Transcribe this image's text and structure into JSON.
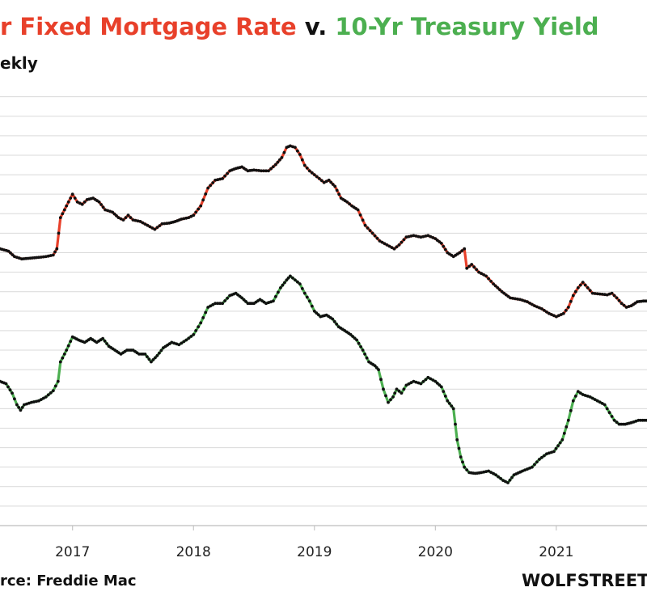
{
  "header": {
    "title_part1": "r Fixed Mortgage Rate",
    "title_part2": " v. ",
    "title_part3": "10-Yr Treasury Yield",
    "subtitle": "ekly"
  },
  "footer": {
    "source": "rce: Freddie Mac",
    "brand": "WOLFSTREET"
  },
  "colors": {
    "mortgage": "#e8402a",
    "treasury": "#4caf50",
    "markers": "#111111",
    "grid": "#d9d9d9"
  },
  "chart_data": {
    "type": "line",
    "title": "Fixed Mortgage Rate v. 10-Yr Treasury Yield",
    "subtitle": "Weekly",
    "xlabel": "",
    "ylabel": "",
    "x_tick_labels": [
      "2017",
      "2018",
      "2019",
      "2020",
      "2021"
    ],
    "x_tick_positions": [
      2017,
      2018,
      2019,
      2020,
      2021
    ],
    "xlim": [
      2016.4,
      2021.75
    ],
    "ylim": [
      0.0,
      5.6
    ],
    "grid": true,
    "series": [
      {
        "name": "Fixed Mortgage Rate",
        "color": "#e8402a",
        "points": [
          [
            2016.4,
            3.55
          ],
          [
            2016.47,
            3.52
          ],
          [
            2016.52,
            3.45
          ],
          [
            2016.58,
            3.42
          ],
          [
            2016.65,
            3.43
          ],
          [
            2016.72,
            3.44
          ],
          [
            2016.78,
            3.45
          ],
          [
            2016.84,
            3.47
          ],
          [
            2016.87,
            3.55
          ],
          [
            2016.9,
            3.95
          ],
          [
            2016.95,
            4.1
          ],
          [
            2017.0,
            4.25
          ],
          [
            2017.04,
            4.15
          ],
          [
            2017.08,
            4.12
          ],
          [
            2017.12,
            4.18
          ],
          [
            2017.17,
            4.2
          ],
          [
            2017.22,
            4.15
          ],
          [
            2017.27,
            4.05
          ],
          [
            2017.33,
            4.02
          ],
          [
            2017.38,
            3.95
          ],
          [
            2017.42,
            3.92
          ],
          [
            2017.46,
            3.98
          ],
          [
            2017.5,
            3.92
          ],
          [
            2017.56,
            3.9
          ],
          [
            2017.62,
            3.85
          ],
          [
            2017.68,
            3.8
          ],
          [
            2017.74,
            3.87
          ],
          [
            2017.8,
            3.88
          ],
          [
            2017.85,
            3.9
          ],
          [
            2017.9,
            3.93
          ],
          [
            2017.96,
            3.95
          ],
          [
            2018.0,
            3.98
          ],
          [
            2018.06,
            4.1
          ],
          [
            2018.12,
            4.33
          ],
          [
            2018.18,
            4.43
          ],
          [
            2018.24,
            4.45
          ],
          [
            2018.3,
            4.55
          ],
          [
            2018.35,
            4.58
          ],
          [
            2018.4,
            4.6
          ],
          [
            2018.45,
            4.55
          ],
          [
            2018.5,
            4.56
          ],
          [
            2018.56,
            4.55
          ],
          [
            2018.62,
            4.55
          ],
          [
            2018.68,
            4.63
          ],
          [
            2018.73,
            4.72
          ],
          [
            2018.77,
            4.85
          ],
          [
            2018.8,
            4.87
          ],
          [
            2018.84,
            4.85
          ],
          [
            2018.88,
            4.76
          ],
          [
            2018.92,
            4.62
          ],
          [
            2018.96,
            4.55
          ],
          [
            2019.0,
            4.5
          ],
          [
            2019.04,
            4.45
          ],
          [
            2019.08,
            4.4
          ],
          [
            2019.12,
            4.43
          ],
          [
            2019.17,
            4.35
          ],
          [
            2019.22,
            4.2
          ],
          [
            2019.27,
            4.15
          ],
          [
            2019.31,
            4.1
          ],
          [
            2019.36,
            4.05
          ],
          [
            2019.42,
            3.85
          ],
          [
            2019.48,
            3.75
          ],
          [
            2019.54,
            3.65
          ],
          [
            2019.6,
            3.6
          ],
          [
            2019.66,
            3.55
          ],
          [
            2019.7,
            3.6
          ],
          [
            2019.76,
            3.7
          ],
          [
            2019.82,
            3.72
          ],
          [
            2019.88,
            3.7
          ],
          [
            2019.94,
            3.72
          ],
          [
            2020.0,
            3.68
          ],
          [
            2020.05,
            3.62
          ],
          [
            2020.1,
            3.5
          ],
          [
            2020.15,
            3.45
          ],
          [
            2020.2,
            3.5
          ],
          [
            2020.24,
            3.55
          ],
          [
            2020.26,
            3.3
          ],
          [
            2020.3,
            3.35
          ],
          [
            2020.36,
            3.25
          ],
          [
            2020.42,
            3.2
          ],
          [
            2020.48,
            3.1
          ],
          [
            2020.55,
            3.0
          ],
          [
            2020.62,
            2.92
          ],
          [
            2020.7,
            2.9
          ],
          [
            2020.76,
            2.87
          ],
          [
            2020.82,
            2.82
          ],
          [
            2020.88,
            2.78
          ],
          [
            2020.94,
            2.72
          ],
          [
            2021.0,
            2.68
          ],
          [
            2021.06,
            2.72
          ],
          [
            2021.1,
            2.8
          ],
          [
            2021.14,
            2.95
          ],
          [
            2021.18,
            3.05
          ],
          [
            2021.22,
            3.12
          ],
          [
            2021.26,
            3.05
          ],
          [
            2021.3,
            2.98
          ],
          [
            2021.36,
            2.97
          ],
          [
            2021.42,
            2.96
          ],
          [
            2021.46,
            2.98
          ],
          [
            2021.5,
            2.92
          ],
          [
            2021.54,
            2.85
          ],
          [
            2021.58,
            2.8
          ],
          [
            2021.62,
            2.82
          ],
          [
            2021.67,
            2.87
          ],
          [
            2021.72,
            2.88
          ],
          [
            2021.75,
            2.88
          ]
        ]
      },
      {
        "name": "10-Yr Treasury Yield",
        "color": "#4caf50",
        "points": [
          [
            2016.4,
            1.85
          ],
          [
            2016.45,
            1.82
          ],
          [
            2016.5,
            1.7
          ],
          [
            2016.54,
            1.55
          ],
          [
            2016.57,
            1.48
          ],
          [
            2016.6,
            1.55
          ],
          [
            2016.66,
            1.58
          ],
          [
            2016.72,
            1.6
          ],
          [
            2016.78,
            1.65
          ],
          [
            2016.84,
            1.73
          ],
          [
            2016.88,
            1.85
          ],
          [
            2016.9,
            2.1
          ],
          [
            2016.95,
            2.25
          ],
          [
            2017.0,
            2.42
          ],
          [
            2017.05,
            2.38
          ],
          [
            2017.1,
            2.35
          ],
          [
            2017.15,
            2.4
          ],
          [
            2017.2,
            2.35
          ],
          [
            2017.25,
            2.4
          ],
          [
            2017.3,
            2.3
          ],
          [
            2017.35,
            2.25
          ],
          [
            2017.4,
            2.2
          ],
          [
            2017.45,
            2.25
          ],
          [
            2017.5,
            2.25
          ],
          [
            2017.55,
            2.2
          ],
          [
            2017.6,
            2.2
          ],
          [
            2017.65,
            2.1
          ],
          [
            2017.7,
            2.18
          ],
          [
            2017.75,
            2.28
          ],
          [
            2017.82,
            2.35
          ],
          [
            2017.88,
            2.32
          ],
          [
            2017.94,
            2.38
          ],
          [
            2018.0,
            2.45
          ],
          [
            2018.06,
            2.6
          ],
          [
            2018.12,
            2.8
          ],
          [
            2018.18,
            2.85
          ],
          [
            2018.24,
            2.85
          ],
          [
            2018.3,
            2.95
          ],
          [
            2018.35,
            2.98
          ],
          [
            2018.4,
            2.92
          ],
          [
            2018.45,
            2.85
          ],
          [
            2018.5,
            2.85
          ],
          [
            2018.55,
            2.9
          ],
          [
            2018.6,
            2.85
          ],
          [
            2018.66,
            2.88
          ],
          [
            2018.72,
            3.05
          ],
          [
            2018.77,
            3.15
          ],
          [
            2018.8,
            3.2
          ],
          [
            2018.84,
            3.15
          ],
          [
            2018.88,
            3.1
          ],
          [
            2018.92,
            2.98
          ],
          [
            2018.96,
            2.88
          ],
          [
            2019.0,
            2.75
          ],
          [
            2019.05,
            2.68
          ],
          [
            2019.1,
            2.7
          ],
          [
            2019.15,
            2.65
          ],
          [
            2019.2,
            2.55
          ],
          [
            2019.25,
            2.5
          ],
          [
            2019.3,
            2.45
          ],
          [
            2019.35,
            2.38
          ],
          [
            2019.4,
            2.25
          ],
          [
            2019.45,
            2.1
          ],
          [
            2019.5,
            2.05
          ],
          [
            2019.53,
            2.0
          ],
          [
            2019.57,
            1.75
          ],
          [
            2019.61,
            1.58
          ],
          [
            2019.65,
            1.65
          ],
          [
            2019.68,
            1.75
          ],
          [
            2019.72,
            1.7
          ],
          [
            2019.76,
            1.8
          ],
          [
            2019.82,
            1.85
          ],
          [
            2019.88,
            1.82
          ],
          [
            2019.94,
            1.9
          ],
          [
            2020.0,
            1.85
          ],
          [
            2020.05,
            1.78
          ],
          [
            2020.1,
            1.6
          ],
          [
            2020.15,
            1.5
          ],
          [
            2020.18,
            1.1
          ],
          [
            2020.21,
            0.88
          ],
          [
            2020.24,
            0.75
          ],
          [
            2020.28,
            0.68
          ],
          [
            2020.33,
            0.67
          ],
          [
            2020.38,
            0.68
          ],
          [
            2020.44,
            0.7
          ],
          [
            2020.5,
            0.65
          ],
          [
            2020.56,
            0.58
          ],
          [
            2020.6,
            0.55
          ],
          [
            2020.65,
            0.65
          ],
          [
            2020.72,
            0.7
          ],
          [
            2020.8,
            0.75
          ],
          [
            2020.86,
            0.85
          ],
          [
            2020.92,
            0.92
          ],
          [
            2020.98,
            0.95
          ],
          [
            2021.05,
            1.1
          ],
          [
            2021.1,
            1.35
          ],
          [
            2021.14,
            1.6
          ],
          [
            2021.18,
            1.72
          ],
          [
            2021.22,
            1.68
          ],
          [
            2021.28,
            1.65
          ],
          [
            2021.34,
            1.6
          ],
          [
            2021.4,
            1.55
          ],
          [
            2021.44,
            1.45
          ],
          [
            2021.48,
            1.35
          ],
          [
            2021.52,
            1.3
          ],
          [
            2021.57,
            1.3
          ],
          [
            2021.62,
            1.32
          ],
          [
            2021.68,
            1.35
          ],
          [
            2021.75,
            1.35
          ]
        ]
      }
    ]
  }
}
